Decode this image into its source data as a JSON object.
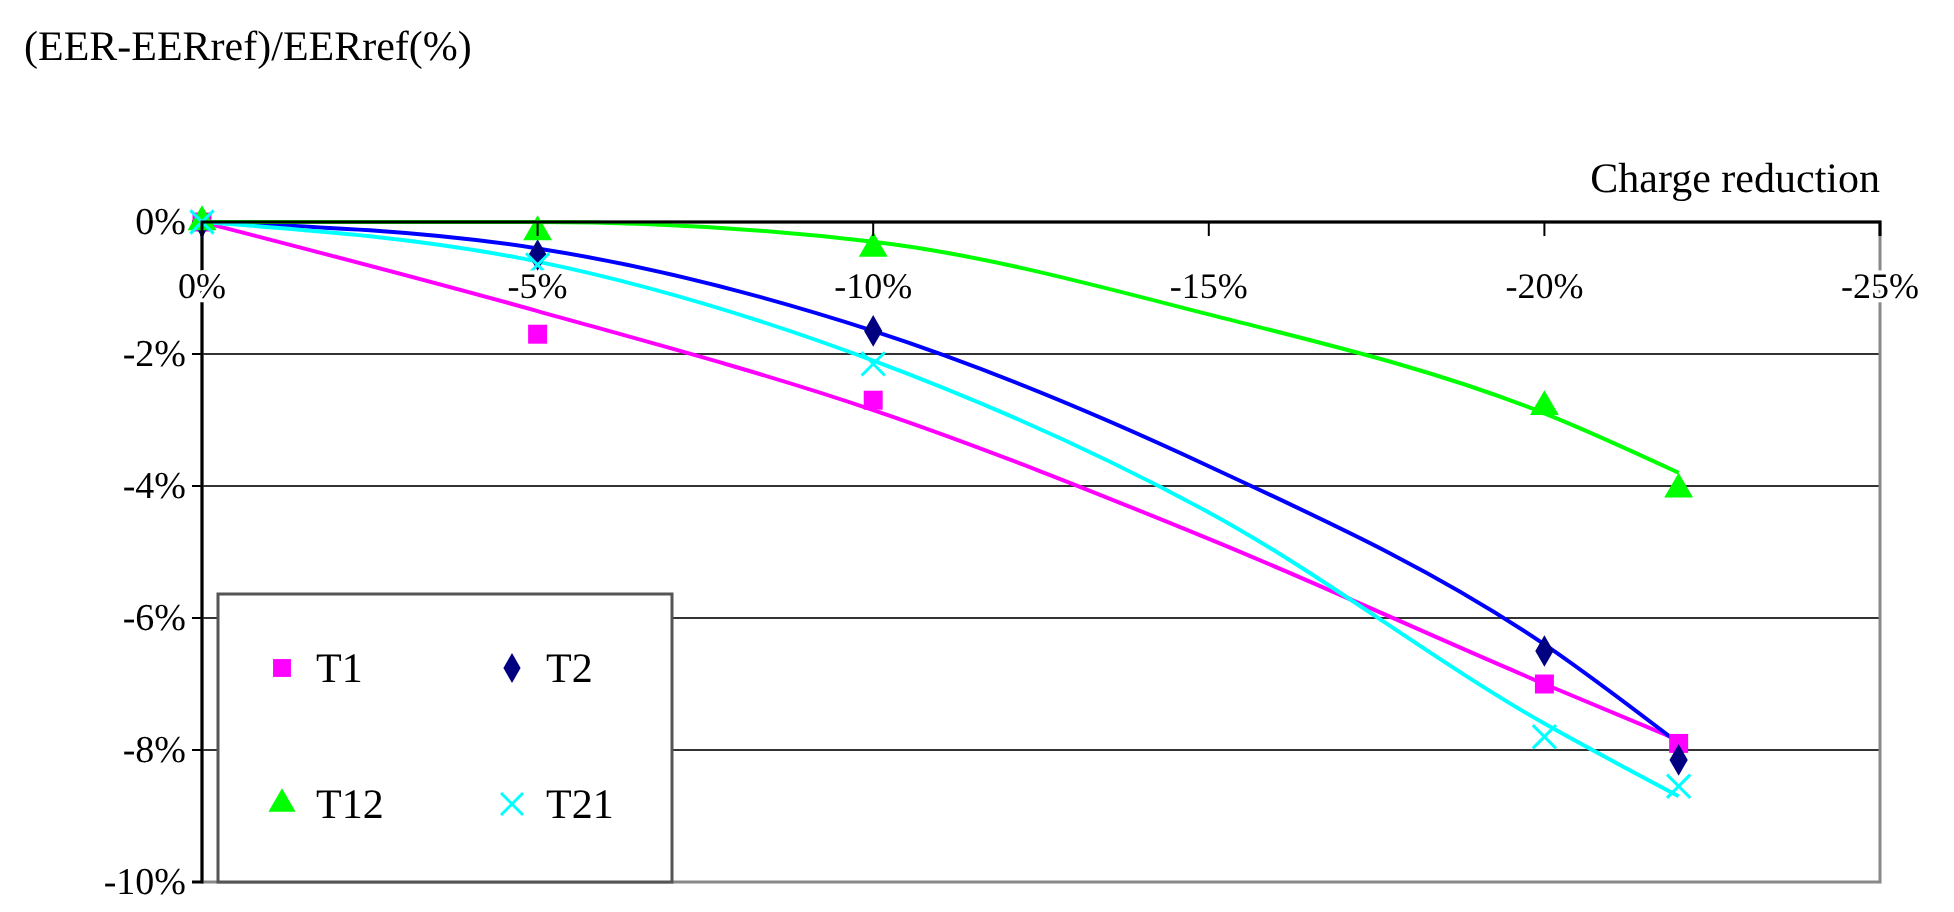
{
  "chart_data": {
    "type": "scatter",
    "ylabel": "(EER-EERref)/EERref(%)",
    "xlabel": "Charge reduction",
    "x": [
      0,
      -5,
      -10,
      -20,
      -22
    ],
    "xlim": [
      0,
      -25
    ],
    "xticks": [
      {
        "value": 0,
        "label": "0%"
      },
      {
        "value": -5,
        "label": "-5%"
      },
      {
        "value": -10,
        "label": "-10%"
      },
      {
        "value": -15,
        "label": "-15%"
      },
      {
        "value": -20,
        "label": "-20%"
      },
      {
        "value": -25,
        "label": "-25%"
      }
    ],
    "ylim": [
      -10,
      0
    ],
    "yticks": [
      {
        "value": 0,
        "label": "0%"
      },
      {
        "value": -2,
        "label": "-2%"
      },
      {
        "value": -4,
        "label": "-4%"
      },
      {
        "value": -6,
        "label": "-6%"
      },
      {
        "value": -8,
        "label": "-8%"
      },
      {
        "value": -10,
        "label": "-10%"
      }
    ],
    "grid": "y",
    "legend": "bottom left",
    "series": [
      {
        "name": "T1",
        "marker": "square",
        "color": "#ff00ff",
        "values": [
          0,
          -1.7,
          -2.7,
          -7.0,
          -7.9
        ]
      },
      {
        "name": "T2",
        "marker": "diamond",
        "color": "#000080",
        "values": [
          0,
          -0.5,
          -1.65,
          -6.5,
          -8.15
        ]
      },
      {
        "name": "T12",
        "marker": "triangle",
        "color": "#00ff00",
        "values": [
          0,
          -0.15,
          -0.4,
          -2.8,
          -4.05
        ]
      },
      {
        "name": "T21",
        "marker": "cross",
        "color": "#00ffff",
        "values": [
          0,
          -0.65,
          -2.15,
          -7.8,
          -8.55
        ]
      },
      {
        "type": "line",
        "color": "#ff00ff",
        "x": [
          0,
          -5,
          -10,
          -15,
          -20,
          -22
        ],
        "values": [
          0,
          -1.35,
          -2.85,
          -4.8,
          -7.0,
          -7.85
        ]
      },
      {
        "type": "line",
        "color": "#0000ff",
        "x": [
          0,
          -5,
          -10,
          -15,
          -20,
          -22
        ],
        "values": [
          0,
          -0.4,
          -1.65,
          -3.7,
          -6.4,
          -7.9
        ]
      },
      {
        "type": "line",
        "color": "#00ff00",
        "x": [
          0,
          -5,
          -10,
          -15,
          -20,
          -22
        ],
        "values": [
          0,
          0,
          -0.3,
          -1.4,
          -2.9,
          -3.8
        ]
      },
      {
        "type": "line",
        "color": "#00ffff",
        "x": [
          0,
          -5,
          -10,
          -15,
          -20,
          -22
        ],
        "values": [
          0,
          -0.6,
          -2.1,
          -4.4,
          -7.6,
          -8.7
        ]
      }
    ]
  }
}
